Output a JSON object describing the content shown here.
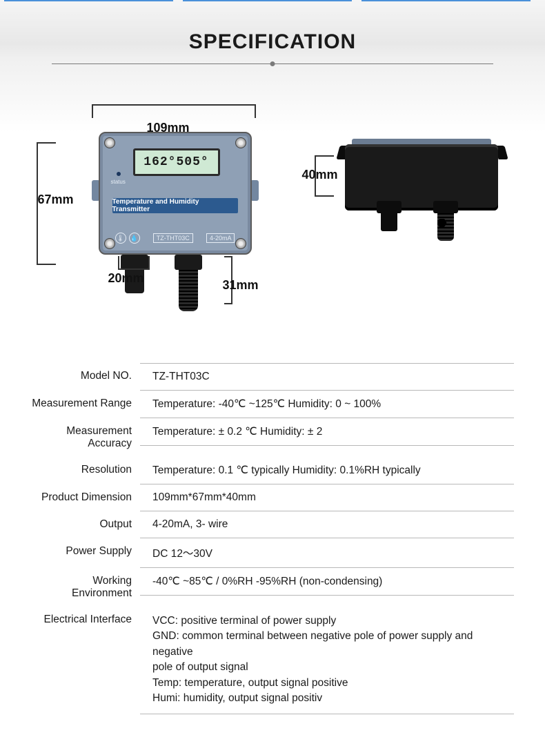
{
  "title": "SPECIFICATION",
  "diagram": {
    "front": {
      "width_label": "109mm",
      "height_label": "67mm",
      "gland_width_label": "20mm",
      "probe_length_label": "31mm",
      "lcd_reading": "162°505°",
      "status_text": "status",
      "banner_text": "Temperature and Humidity Transmitter",
      "model_text": "TZ-THT03C",
      "output_text": "4-20mA"
    },
    "side": {
      "depth_label": "40mm"
    },
    "colors": {
      "device_body": "#8fa0b5",
      "device_accent": "#2c5a8f",
      "lcd_bg": "#cfe9d4",
      "side_body": "#1a1a1a",
      "bracket": "#333333"
    }
  },
  "specs": [
    {
      "label": "Model NO.",
      "value": "TZ-THT03C"
    },
    {
      "label": "Measurement Range",
      "value": "Temperature: -40℃ ~125℃       Humidity: 0 ~ 100%"
    },
    {
      "label": "Measurement Accuracy",
      "value": "Temperature:  ± 0.2 ℃     Humidity:  ± 2"
    },
    {
      "label": "Resolution",
      "value": "Temperature: 0.1 ℃ typically     Humidity: 0.1%RH typically"
    },
    {
      "label": "Product Dimension",
      "value": "109mm*67mm*40mm"
    },
    {
      "label": "Output",
      "value": "4-20mA, 3- wire"
    },
    {
      "label": "Power Supply",
      "value": "DC 12～30V"
    },
    {
      "label": "Working Environment",
      "value": "-40℃ ~85℃ / 0%RH -95%RH (non-condensing)"
    },
    {
      "label": "Electrical Interface",
      "value": "VCC: positive terminal of power supply\nGND: common terminal between negative pole of power supply and negative\n pole of output signal\nTemp: temperature, output signal positive\nHumi: humidity, output signal positiv"
    }
  ]
}
